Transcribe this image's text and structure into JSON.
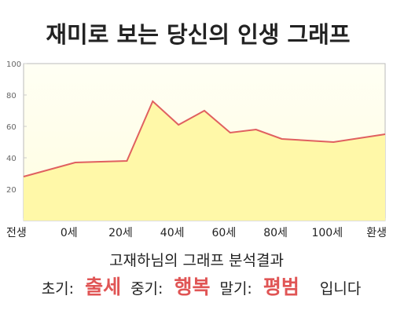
{
  "chart_data": {
    "type": "area",
    "title": "재미로 보는 당신의 인생 그래프",
    "x": [
      -20,
      0,
      10,
      20,
      30,
      40,
      50,
      60,
      70,
      80,
      100,
      120
    ],
    "values": [
      28,
      37,
      37.5,
      38,
      76,
      61,
      70,
      56,
      58,
      52,
      50,
      55
    ],
    "line_color": "#e06060",
    "fill_color": "#fff8a8",
    "xlim": [
      -20,
      120
    ],
    "xticks": [
      {
        "value": -20,
        "label": "전생"
      },
      {
        "value": 0,
        "label": "0세"
      },
      {
        "value": 20,
        "label": "20세"
      },
      {
        "value": 40,
        "label": "40세"
      },
      {
        "value": 60,
        "label": "60세"
      },
      {
        "value": 80,
        "label": "80세"
      },
      {
        "value": 100,
        "label": "100세"
      },
      {
        "value": 120,
        "label": "환생"
      }
    ],
    "ylim": [
      0,
      100
    ],
    "yticks": [
      20,
      40,
      60,
      80,
      100
    ],
    "grid": false
  },
  "result": {
    "heading": "고재하님의 그래프 분석결과",
    "items": [
      {
        "label": "초기:",
        "value": "출세"
      },
      {
        "label": "중기:",
        "value": "행복"
      },
      {
        "label": "말기:",
        "value": "평범"
      }
    ],
    "ending": "입니다"
  }
}
